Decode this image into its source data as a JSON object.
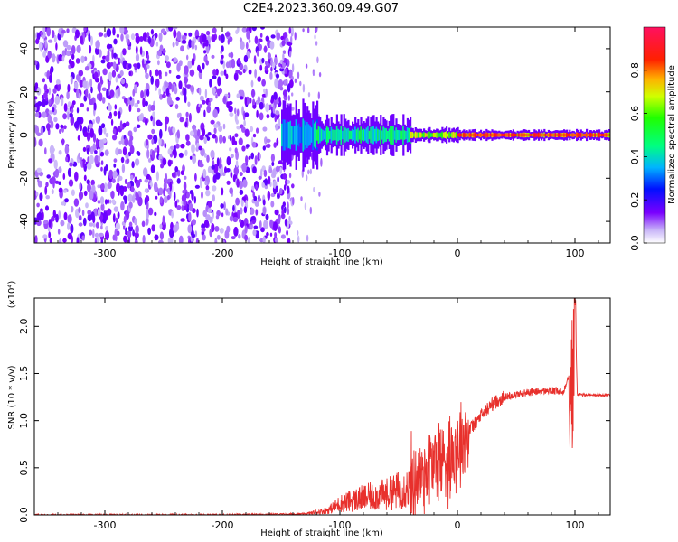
{
  "page": {
    "title": "C2E4.2023.360.09.49.G07"
  },
  "colorbar": {
    "label": "Normalized spectral amplitude",
    "ticks": [
      "0.0",
      "0.2",
      "0.4",
      "0.6",
      "0.8"
    ]
  },
  "chart_data": [
    {
      "type": "heatmap",
      "title": "",
      "xlabel": "Height of straight line (km)",
      "ylabel": "Frequency (Hz)",
      "xlim": [
        -360,
        130
      ],
      "ylim": [
        -50,
        50
      ],
      "xticks": [
        "-300",
        "-200",
        "-100",
        "0",
        "100"
      ],
      "yticks": [
        "-40",
        "-20",
        "0",
        "20",
        "40"
      ],
      "zlim": [
        0.0,
        1.0
      ],
      "noise_region_x": [
        -360,
        -150
      ],
      "onset_x": -150,
      "signal_line_freq_hz": 0,
      "signal_bands": [
        {
          "x": [
            -150,
            -120
          ],
          "half_width_hz": 12,
          "amplitude": 0.4
        },
        {
          "x": [
            -120,
            -40
          ],
          "half_width_hz": 7,
          "amplitude": 0.5
        },
        {
          "x": [
            -40,
            0
          ],
          "half_width_hz": 3,
          "amplitude": 0.7
        },
        {
          "x": [
            0,
            130
          ],
          "half_width_hz": 2,
          "amplitude": 0.9
        }
      ],
      "grid": false
    },
    {
      "type": "line",
      "title": "",
      "xlabel": "Height of straight line (km)",
      "ylabel": "SNR (10 * v/v)",
      "multiplier_label": "(x10⁴)",
      "xlim": [
        -360,
        130
      ],
      "ylim": [
        0.0,
        2.3
      ],
      "xticks": [
        "-300",
        "-200",
        "-100",
        "0",
        "100"
      ],
      "yticks": [
        "0.0",
        "0.5",
        "1.0",
        "1.5",
        "2.0"
      ],
      "series": [
        {
          "color": "#e8302c",
          "x": [
            -360,
            -200,
            -130,
            -110,
            -100,
            -80,
            -60,
            -40,
            -30,
            -20,
            -10,
            0,
            10,
            20,
            30,
            40,
            60,
            80,
            90,
            95,
            98,
            100,
            102,
            110,
            130
          ],
          "y": [
            0.0,
            0.0,
            0.01,
            0.05,
            0.12,
            0.18,
            0.22,
            0.3,
            0.45,
            0.55,
            0.6,
            0.75,
            0.9,
            1.05,
            1.18,
            1.25,
            1.3,
            1.32,
            1.3,
            1.5,
            1.3,
            2.3,
            1.28,
            1.27,
            1.27
          ]
        }
      ],
      "grid": false
    }
  ]
}
